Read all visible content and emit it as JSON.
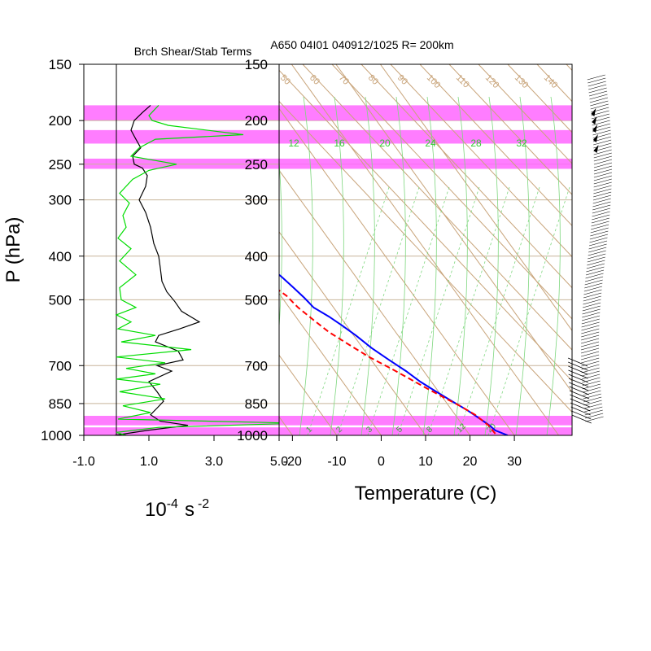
{
  "chart_data": [
    {
      "type": "line",
      "title": "Brch Shear/Stab Terms",
      "xlabel_base": "10",
      "xlabel_exp": "-4",
      "xlabel_unit": "s",
      "xlabel_unit_exp": "-2",
      "ylabel": "P (hPa)",
      "xlim": [
        -1.0,
        5.0
      ],
      "xticks": [
        "-1.0",
        "1.0",
        "3.0",
        "5.0"
      ],
      "pressure_ticks": [
        150,
        200,
        250,
        300,
        400,
        500,
        700,
        850,
        1000
      ],
      "ylim": [
        1000,
        150
      ],
      "highlight_bands_hpa": [
        [
          185,
          200
        ],
        [
          210,
          225
        ],
        [
          243,
          256
        ],
        [
          905,
          950
        ],
        [
          960,
          1000
        ]
      ],
      "series": [
        {
          "color": "#000000",
          "points": [
            [
              1.05,
              185
            ],
            [
              0.8,
              192
            ],
            [
              0.55,
              200
            ],
            [
              0.45,
              210
            ],
            [
              0.6,
              220
            ],
            [
              0.75,
              230
            ],
            [
              0.5,
              240
            ],
            [
              0.55,
              250
            ],
            [
              0.8,
              255
            ],
            [
              0.95,
              265
            ],
            [
              0.9,
              280
            ],
            [
              0.7,
              300
            ],
            [
              0.9,
              320
            ],
            [
              1.05,
              345
            ],
            [
              1.15,
              375
            ],
            [
              1.3,
              400
            ],
            [
              1.35,
              425
            ],
            [
              1.4,
              455
            ],
            [
              1.55,
              480
            ],
            [
              1.8,
              505
            ],
            [
              2.0,
              530
            ],
            [
              2.55,
              560
            ],
            [
              1.95,
              580
            ],
            [
              1.3,
              600
            ],
            [
              1.2,
              620
            ],
            [
              1.9,
              650
            ],
            [
              2.05,
              680
            ],
            [
              1.25,
              700
            ],
            [
              1.7,
              720
            ],
            [
              1.0,
              760
            ],
            [
              1.25,
              800
            ],
            [
              1.45,
              840
            ],
            [
              1.25,
              870
            ],
            [
              1.05,
              900
            ],
            [
              1.35,
              930
            ],
            [
              2.2,
              950
            ],
            [
              0.95,
              975
            ],
            [
              -0.05,
              1000
            ]
          ]
        },
        {
          "color": "#00dd00",
          "points": [
            [
              1.3,
              185
            ],
            [
              1.0,
              195
            ],
            [
              1.1,
              200
            ],
            [
              1.6,
              205
            ],
            [
              3.9,
              215
            ],
            [
              1.2,
              220
            ],
            [
              0.7,
              230
            ],
            [
              0.45,
              240
            ],
            [
              1.85,
              250
            ],
            [
              1.0,
              258
            ],
            [
              0.5,
              270
            ],
            [
              0.1,
              290
            ],
            [
              0.4,
              305
            ],
            [
              0.2,
              325
            ],
            [
              0.3,
              345
            ],
            [
              0.05,
              365
            ],
            [
              0.45,
              385
            ],
            [
              0.1,
              410
            ],
            [
              0.6,
              440
            ],
            [
              0.1,
              470
            ],
            [
              0.15,
              500
            ],
            [
              0.6,
              520
            ],
            [
              0.0,
              540
            ],
            [
              0.45,
              560
            ],
            [
              0.05,
              580
            ],
            [
              1.2,
              600
            ],
            [
              0.15,
              620
            ],
            [
              2.3,
              645
            ],
            [
              0.0,
              670
            ],
            [
              1.5,
              690
            ],
            [
              0.3,
              710
            ],
            [
              1.2,
              730
            ],
            [
              0.0,
              750
            ],
            [
              1.35,
              770
            ],
            [
              0.1,
              800
            ],
            [
              1.5,
              830
            ],
            [
              0.2,
              860
            ],
            [
              1.05,
              890
            ],
            [
              0.05,
              920
            ],
            [
              5.6,
              940
            ],
            [
              1.3,
              960
            ],
            [
              0.0,
              985
            ],
            [
              0.3,
              1000
            ]
          ]
        }
      ]
    },
    {
      "type": "line",
      "title": "A650 04I01 040912/1025 R= 200km",
      "xlabel": "Temperature (C)",
      "xlim": [
        -23,
        43
      ],
      "xticks": [
        -20,
        -10,
        0,
        10,
        20,
        30
      ],
      "pressure_ticks": [
        150,
        200,
        250,
        300,
        400,
        500,
        700,
        850,
        1000
      ],
      "ylim": [
        1000,
        150
      ],
      "theta_labels": [
        "40",
        "50",
        "60",
        "70",
        "80",
        "90",
        "100",
        "110",
        "120",
        "130",
        "140",
        "150"
      ],
      "mixing_ratio_labels": [
        "1",
        "2",
        "3",
        "5",
        "8",
        "12",
        "20"
      ],
      "thetae_labels": [
        "12",
        "16",
        "20",
        "24",
        "28",
        "32"
      ],
      "highlight_bands_hpa": [
        [
          185,
          200
        ],
        [
          210,
          225
        ],
        [
          243,
          256
        ],
        [
          905,
          950
        ],
        [
          960,
          1000
        ]
      ],
      "series": [
        {
          "name": "temperature",
          "color": "#0000ff",
          "style": "solid",
          "points": [
            [
              -24.0,
              185
            ],
            [
              -21.0,
              200
            ],
            [
              -18.0,
              220
            ],
            [
              -15.0,
              240
            ],
            [
              -12.5,
              260
            ],
            [
              -10.0,
              280
            ],
            [
              -7.5,
              300
            ],
            [
              -5.5,
              320
            ],
            [
              -3.5,
              345
            ],
            [
              -1.5,
              370
            ],
            [
              0.5,
              395
            ],
            [
              2.0,
              420
            ],
            [
              3.3,
              445
            ],
            [
              4.2,
              470
            ],
            [
              5.0,
              495
            ],
            [
              5.5,
              520
            ],
            [
              7.5,
              545
            ],
            [
              9.0,
              570
            ],
            [
              10.5,
              600
            ],
            [
              12.0,
              640
            ],
            [
              14.0,
              680
            ],
            [
              16.0,
              720
            ],
            [
              17.5,
              760
            ],
            [
              19.5,
              800
            ],
            [
              21.5,
              840
            ],
            [
              23.5,
              880
            ],
            [
              25.0,
              920
            ],
            [
              26.0,
              950
            ],
            [
              26.5,
              975
            ],
            [
              28.5,
              1000
            ]
          ]
        },
        {
          "name": "dewpoint",
          "color": "#ff0000",
          "style": "dashed",
          "points": [
            [
              -30.0,
              200
            ],
            [
              -27.0,
              220
            ],
            [
              -23.5,
              245
            ],
            [
              -20.5,
              265
            ],
            [
              -17.5,
              290
            ],
            [
              -14.0,
              320
            ],
            [
              -11.5,
              345
            ],
            [
              -8.5,
              375
            ],
            [
              -6.0,
              400
            ],
            [
              -3.0,
              430
            ],
            [
              -0.5,
              460
            ],
            [
              1.3,
              490
            ],
            [
              2.0,
              520
            ],
            [
              3.5,
              555
            ],
            [
              5.0,
              590
            ],
            [
              7.5,
              630
            ],
            [
              10.0,
              670
            ],
            [
              13.0,
              710
            ],
            [
              15.0,
              740
            ],
            [
              17.5,
              780
            ],
            [
              20.0,
              820
            ],
            [
              22.5,
              860
            ],
            [
              24.5,
              900
            ],
            [
              25.8,
              950
            ],
            [
              26.0,
              1000
            ]
          ]
        }
      ],
      "wind_barbs_note": ""
    }
  ]
}
